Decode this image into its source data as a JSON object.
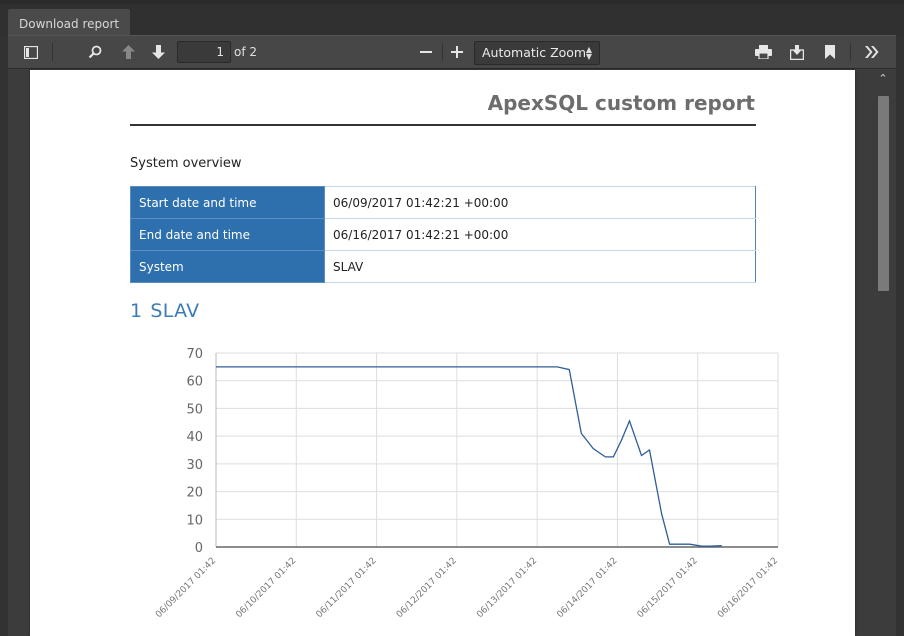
{
  "tab": {
    "label": "Download report"
  },
  "toolbar": {
    "page_current": "1",
    "page_count_label": "of 2",
    "zoom_label": "Automatic Zoom"
  },
  "report": {
    "title": "ApexSQL custom report",
    "overview_label": "System overview",
    "overview_rows": [
      {
        "key": "Start date and time",
        "value": "06/09/2017 01:42:21 +00:00"
      },
      {
        "key": "End date and time",
        "value": "06/16/2017 01:42:21 +00:00"
      },
      {
        "key": "System",
        "value": "SLAV"
      }
    ],
    "section_number": "1",
    "section_title": "SLAV"
  },
  "colors": {
    "accent": "#2e6fad",
    "heading": "#3d7ab8",
    "line": "#2f5f97"
  },
  "chart_data": {
    "type": "line",
    "title": "",
    "xlabel": "",
    "ylabel": "",
    "ylim": [
      0,
      70
    ],
    "yticks": [
      "0",
      "10",
      "20",
      "30",
      "40",
      "50",
      "60",
      "70"
    ],
    "x_tick_labels": [
      "06/09/2017 01:42",
      "06/10/2017 01:42",
      "06/11/2017 01:42",
      "06/12/2017 01:42",
      "06/13/2017 01:42",
      "06/14/2017 01:42",
      "06/15/2017 01:42",
      "06/16/2017 01:42"
    ],
    "grid": true,
    "series": [
      {
        "x": [
          0,
          4.25,
          4.4,
          4.55,
          4.7,
          4.85,
          4.95,
          5.05,
          5.15,
          5.3,
          5.4,
          5.55,
          5.65,
          5.9,
          6.05,
          6.15,
          6.3
        ],
        "values": [
          65,
          65,
          64,
          41,
          35.5,
          32.5,
          32.5,
          38.5,
          45.5,
          33,
          35,
          12,
          1,
          1,
          0.3,
          0.3,
          0.5
        ]
      }
    ]
  }
}
